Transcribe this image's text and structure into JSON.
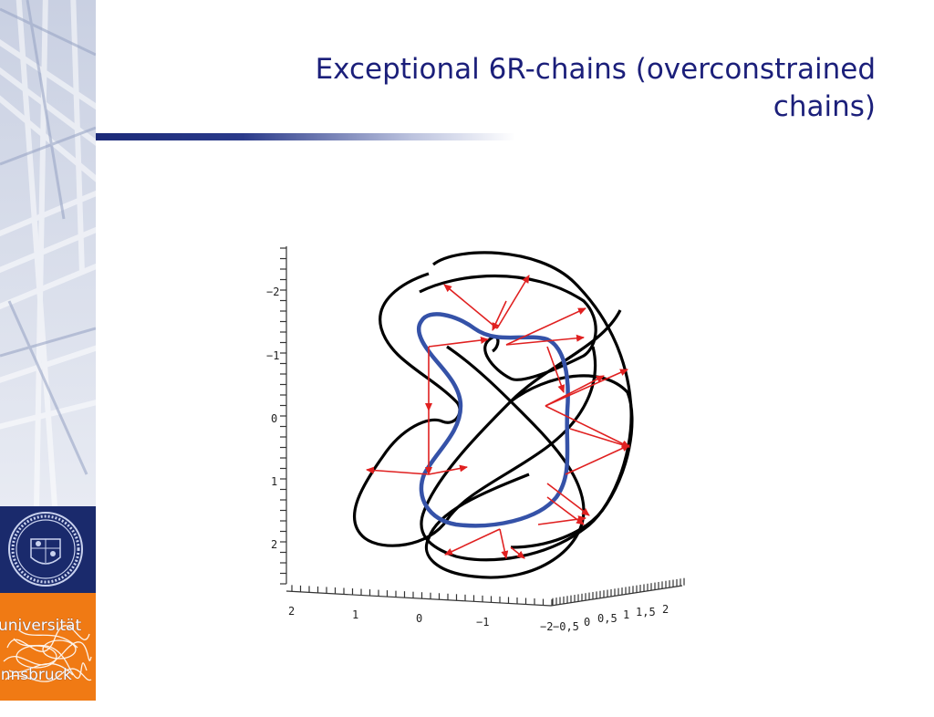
{
  "slide": {
    "title_line1": "Exceptional 6R-chains (overconstrained",
    "title_line2": "chains)"
  },
  "logo": {
    "line1": "universität",
    "line2": "innsbruck",
    "colors": {
      "navy": "#1a2a6c",
      "orange": "#f07a14"
    }
  },
  "diagram": {
    "left_axis_ticks": [
      "−2",
      "−1",
      "0",
      "1",
      "2"
    ],
    "bottom_axis_ticks": [
      "2",
      "1",
      "0",
      "−1",
      "−2"
    ],
    "depth_axis_ticks": [
      "−0,5",
      "0",
      "0,5",
      "1",
      "1,5",
      "2"
    ],
    "colors": {
      "curves": "#000000",
      "inner_curve": "#3552a8",
      "arrows": "#e02020"
    }
  }
}
